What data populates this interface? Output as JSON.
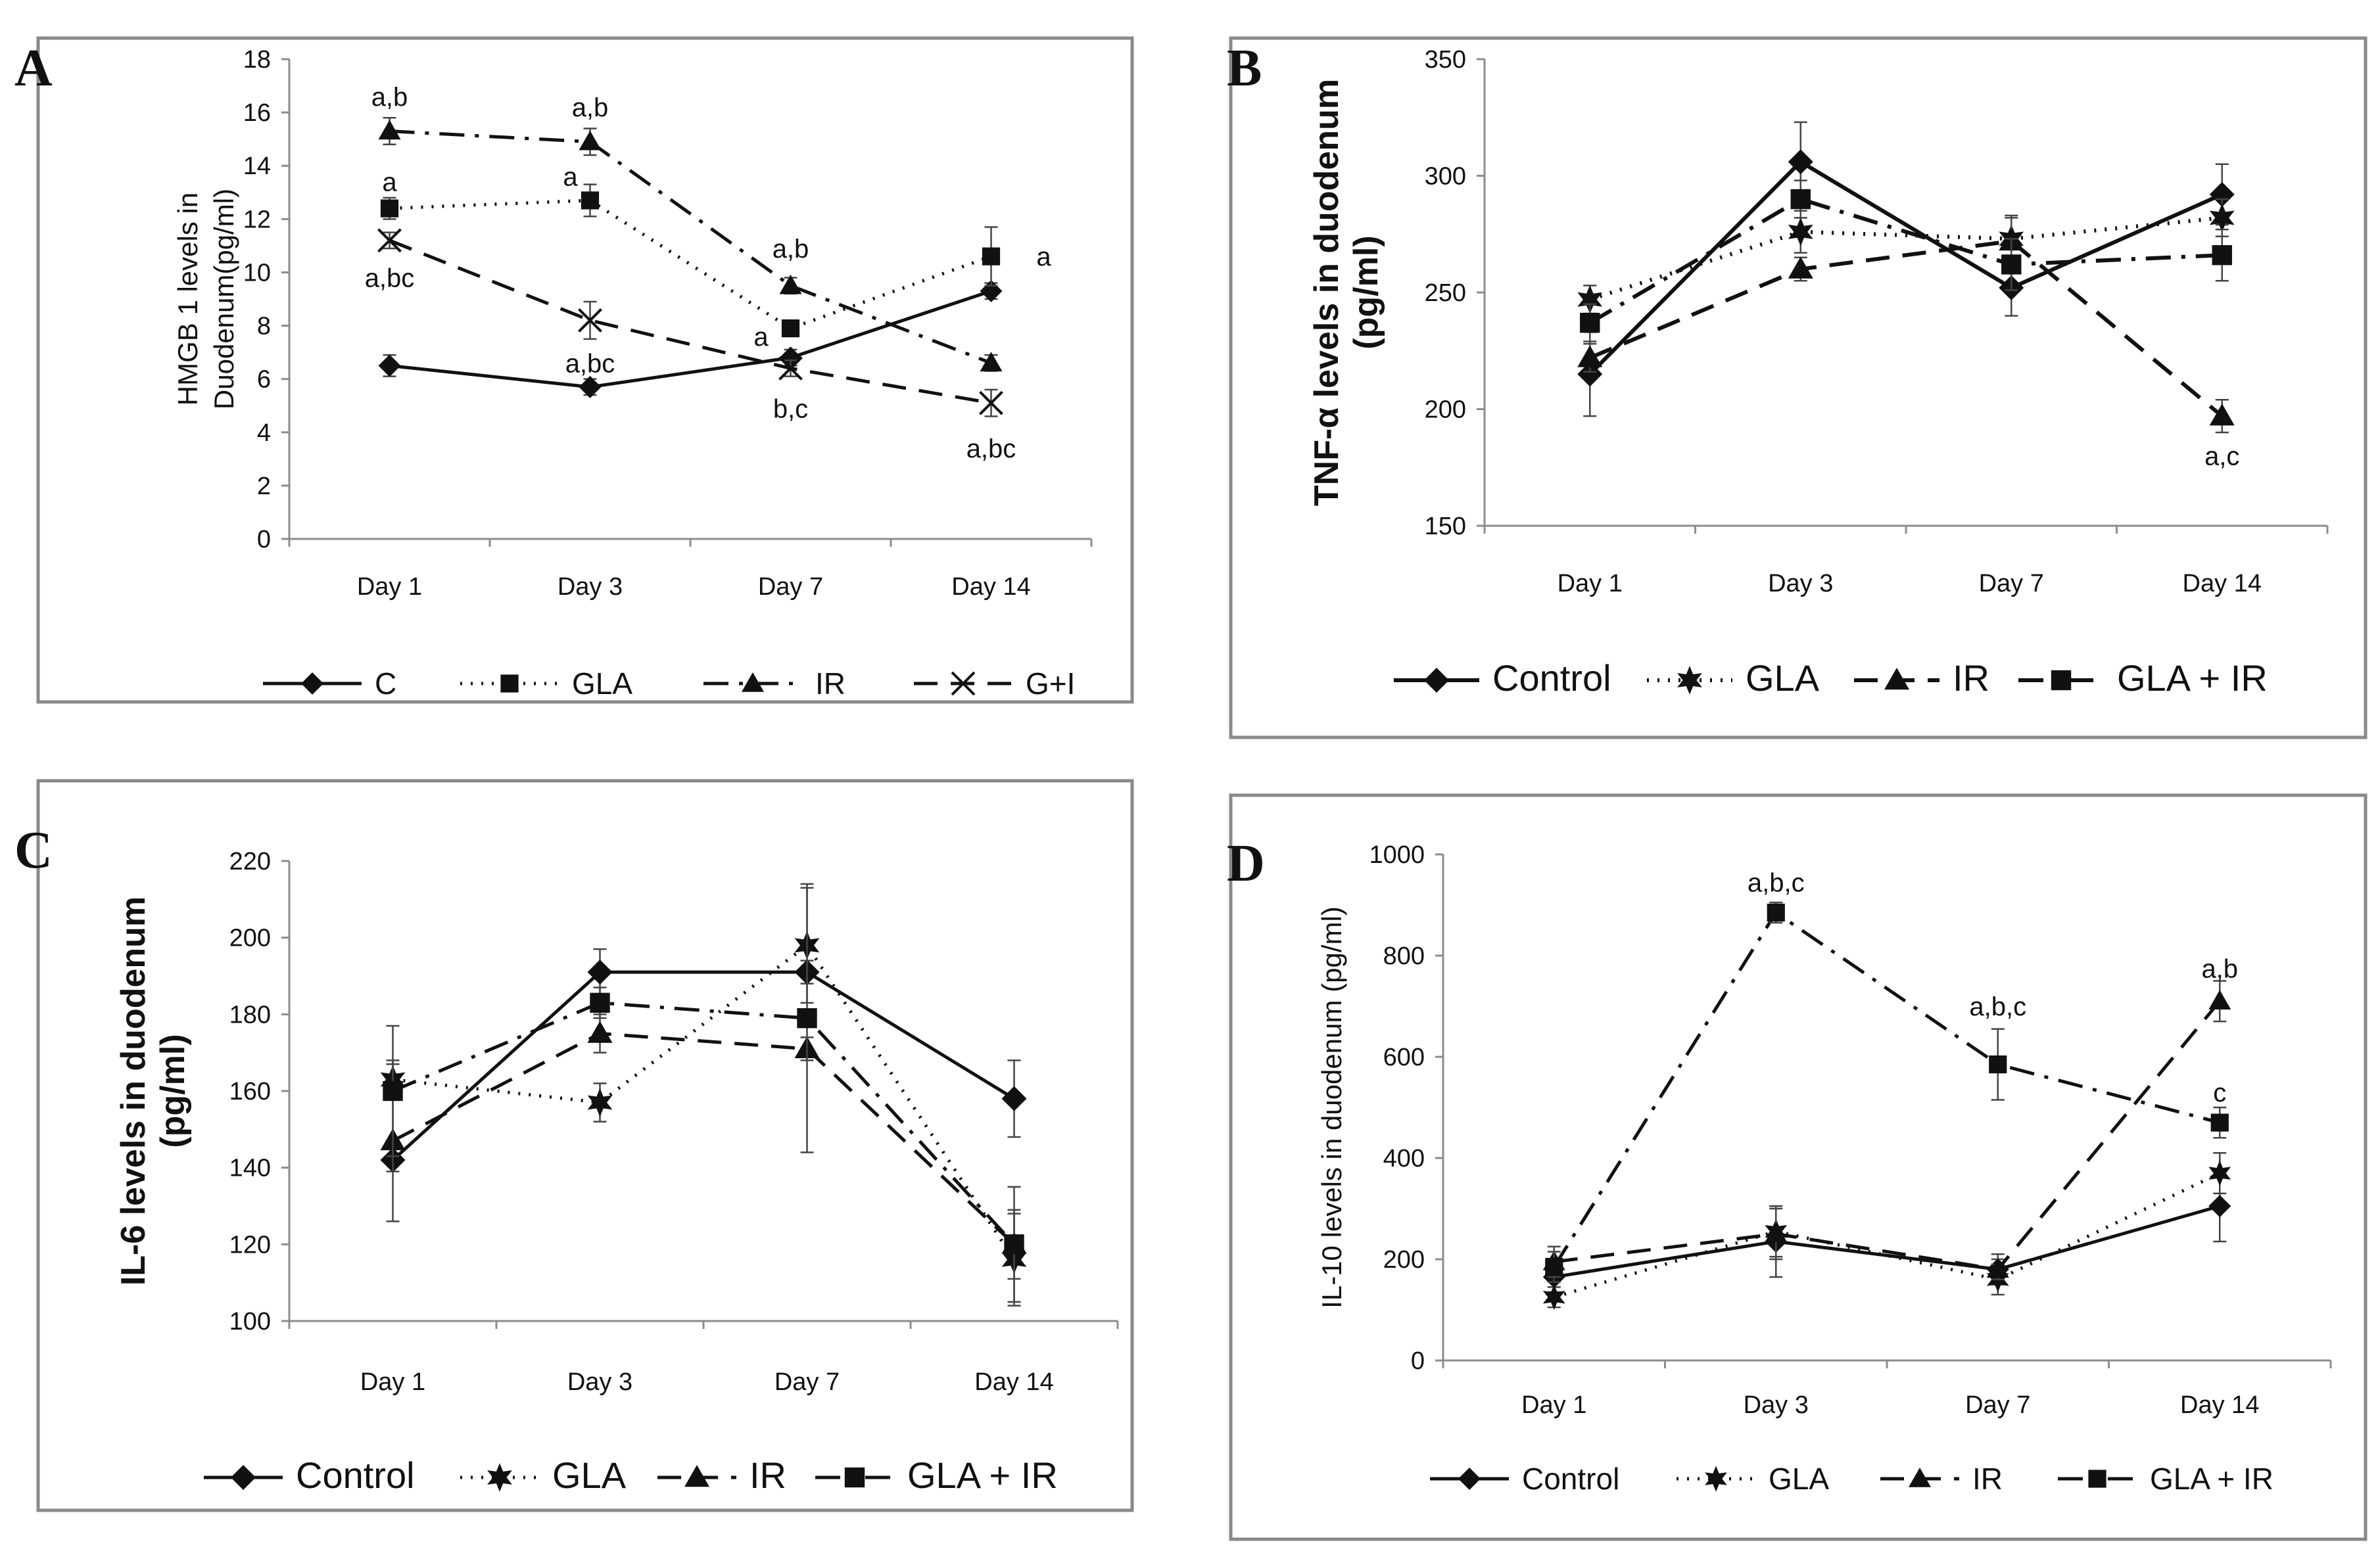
{
  "chart_data": [
    {
      "panel": "A",
      "type": "line",
      "title": "",
      "ylabel": [
        "HMGB 1 levels in",
        "Duodenum(pg/ml)"
      ],
      "categories": [
        "Day 1",
        "Day 3",
        "Day 7",
        "Day 14"
      ],
      "ylim": [
        0,
        18
      ],
      "yticks": [
        0,
        2,
        4,
        6,
        8,
        10,
        12,
        14,
        16,
        18
      ],
      "series": [
        {
          "name": "C",
          "values": [
            6.5,
            5.7,
            6.8,
            9.3
          ],
          "errors": [
            0.4,
            0.3,
            0.3,
            0.3
          ],
          "marker": "diamond",
          "dash": "solid"
        },
        {
          "name": "GLA",
          "values": [
            12.4,
            12.7,
            7.9,
            10.6
          ],
          "errors": [
            0.4,
            0.6,
            0.3,
            1.1
          ],
          "marker": "square",
          "dash": "dotted"
        },
        {
          "name": "IR",
          "values": [
            15.3,
            14.9,
            9.5,
            6.6
          ],
          "errors": [
            0.5,
            0.5,
            0.3,
            0.3
          ],
          "marker": "triangle",
          "dash": "dashdot"
        },
        {
          "name": "G+I",
          "values": [
            11.2,
            8.2,
            6.4,
            5.1
          ],
          "errors": [
            0.3,
            0.7,
            0.3,
            0.5
          ],
          "marker": "cross",
          "dash": "dashed"
        }
      ],
      "annotations": [
        {
          "text": "a,b",
          "category": "Day 1",
          "y": 16.6
        },
        {
          "text": "a",
          "category": "Day 1",
          "y": 13.4
        },
        {
          "text": "a,bc",
          "category": "Day 1",
          "y": 9.8
        },
        {
          "text": "a,b",
          "category": "Day 3",
          "y": 16.2
        },
        {
          "text": "a",
          "category": "Day 3",
          "y": 13.6
        },
        {
          "text": "a,bc",
          "category": "Day 3",
          "y": 6.6
        },
        {
          "text": "a,b",
          "category": "Day 7",
          "y": 10.9
        },
        {
          "text": "a",
          "category": "Day 7",
          "y": 7.6
        },
        {
          "text": "b,c",
          "category": "Day 7",
          "y": 4.9
        },
        {
          "text": "a",
          "category": "Day 14",
          "y": 10.6
        },
        {
          "text": "a,bc",
          "category": "Day 14",
          "y": 3.4
        }
      ]
    },
    {
      "panel": "B",
      "type": "line",
      "title": "",
      "ylabel": [
        "TNF-α levels in duodenum",
        "(pg/ml)"
      ],
      "categories": [
        "Day 1",
        "Day 3",
        "Day 7",
        "Day 14"
      ],
      "ylim": [
        150,
        350
      ],
      "yticks": [
        150,
        200,
        250,
        300,
        350
      ],
      "series": [
        {
          "name": "Control",
          "values": [
            215,
            306,
            252,
            292
          ],
          "errors": [
            18,
            17,
            12,
            13
          ],
          "marker": "diamond",
          "dash": "solid"
        },
        {
          "name": "GLA",
          "values": [
            247,
            276,
            273,
            282
          ],
          "errors": [
            6,
            9,
            9,
            8
          ],
          "marker": "star",
          "dash": "dotted"
        },
        {
          "name": "IR",
          "values": [
            222,
            260,
            272,
            197
          ],
          "errors": [
            6,
            5,
            11,
            7
          ],
          "marker": "triangle",
          "dash": "dashed"
        },
        {
          "name": "GLA + IR",
          "values": [
            237,
            290,
            262,
            266
          ],
          "errors": [
            8,
            8,
            11,
            11
          ],
          "marker": "square",
          "dash": "dashdot"
        }
      ],
      "annotations": [
        {
          "text": "a,c",
          "category": "Day 14",
          "y": 180
        }
      ]
    },
    {
      "panel": "C",
      "type": "line",
      "title": "",
      "ylabel": [
        "IL-6 levels in duodenum",
        "(pg/ml)"
      ],
      "categories": [
        "Day 1",
        "Day 3",
        "Day 7",
        "Day 14"
      ],
      "ylim": [
        100,
        220
      ],
      "yticks": [
        100,
        120,
        140,
        160,
        180,
        200,
        220
      ],
      "series": [
        {
          "name": "Control",
          "values": [
            142,
            191,
            191,
            158
          ],
          "errors": [
            3,
            6,
            3,
            10
          ],
          "marker": "diamond",
          "dash": "solid"
        },
        {
          "name": "GLA",
          "values": [
            163,
            157,
            198,
            116
          ],
          "errors": [
            4,
            5,
            15,
            12
          ],
          "marker": "star",
          "dash": "dotted"
        },
        {
          "name": "IR",
          "values": [
            147,
            175,
            171,
            120
          ],
          "errors": [
            21,
            5,
            3,
            15
          ],
          "marker": "triangle",
          "dash": "dashed"
        },
        {
          "name": "GLA + IR",
          "values": [
            160,
            183,
            179,
            120
          ],
          "errors": [
            17,
            4,
            35,
            9
          ],
          "marker": "square",
          "dash": "dashdot"
        }
      ],
      "annotations": []
    },
    {
      "panel": "D",
      "type": "line",
      "title": "",
      "ylabel": [
        "IL-10 levels in duodenum (pg/ml)"
      ],
      "categories": [
        "Day 1",
        "Day 3",
        "Day 7",
        "Day 14"
      ],
      "ylim": [
        0,
        1000
      ],
      "yticks": [
        0,
        200,
        400,
        600,
        800,
        1000
      ],
      "series": [
        {
          "name": "Control",
          "values": [
            165,
            235,
            180,
            305
          ],
          "errors": [
            30,
            70,
            30,
            70
          ],
          "marker": "diamond",
          "dash": "solid"
        },
        {
          "name": "GLA",
          "values": [
            125,
            255,
            160,
            370
          ],
          "errors": [
            20,
            50,
            30,
            40
          ],
          "marker": "star",
          "dash": "dotted"
        },
        {
          "name": "IR",
          "values": [
            195,
            250,
            180,
            710
          ],
          "errors": [
            30,
            50,
            20,
            40
          ],
          "marker": "triangle",
          "dash": "dashed"
        },
        {
          "name": "GLA + IR",
          "values": [
            185,
            885,
            585,
            470
          ],
          "errors": [
            30,
            20,
            70,
            30
          ],
          "marker": "square",
          "dash": "dashdot"
        }
      ],
      "annotations": [
        {
          "text": "a,b,c",
          "category": "Day 3",
          "y": 945
        },
        {
          "text": "a,b,c",
          "category": "Day 7",
          "y": 700
        },
        {
          "text": "a,b",
          "category": "Day 14",
          "y": 775
        },
        {
          "text": "c",
          "category": "Day 14",
          "y": 530
        }
      ]
    }
  ]
}
